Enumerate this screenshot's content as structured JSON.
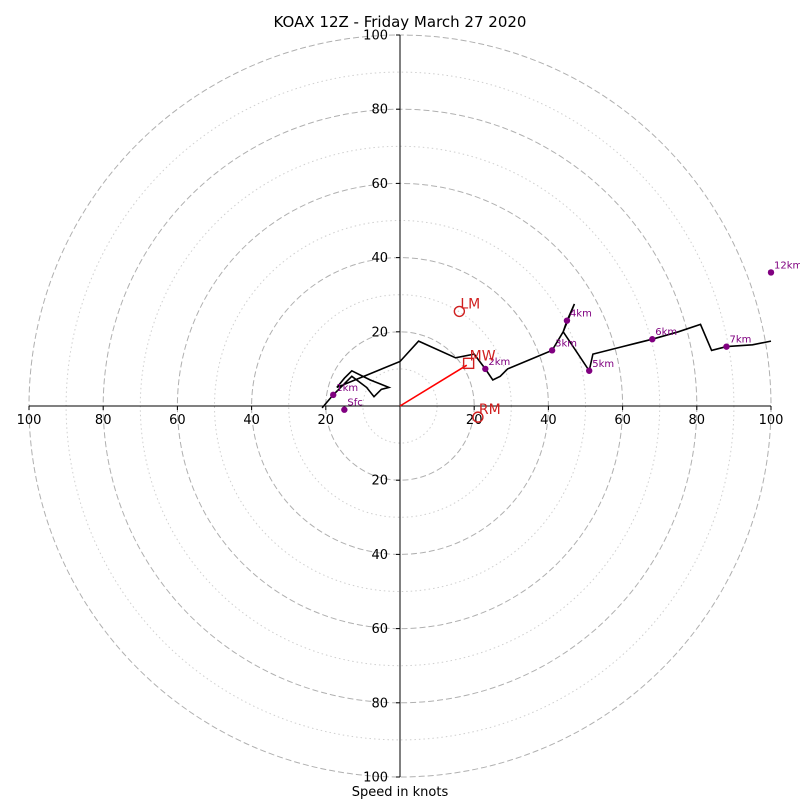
{
  "chart_data": {
    "type": "scatter",
    "title": "KOAX 12Z - Friday March 27 2020",
    "xlabel": "Speed in knots",
    "ylabel": "",
    "xlim": [
      -100,
      100
    ],
    "ylim": [
      -100,
      100
    ],
    "ring_values": [
      20,
      40,
      60,
      80,
      100
    ],
    "minor_ring_values": [
      10,
      30,
      50,
      70,
      90
    ],
    "tick_labels": [
      "100",
      "80",
      "60",
      "40",
      "20",
      "20",
      "40",
      "60",
      "80",
      "100"
    ],
    "grid": true,
    "hodograph": {
      "name": "",
      "color": "#000000",
      "points": [
        [
          -21,
          -0.5
        ],
        [
          -18,
          3
        ],
        [
          -13,
          8
        ],
        [
          -9,
          5
        ],
        [
          -7,
          2.5
        ],
        [
          -5,
          4.5
        ],
        [
          -3,
          5
        ],
        [
          -8,
          7
        ],
        [
          -13,
          9.5
        ],
        [
          -15,
          7.5
        ],
        [
          -17,
          5
        ],
        [
          0,
          12
        ],
        [
          5,
          17.5
        ],
        [
          15,
          13
        ],
        [
          20,
          14
        ],
        [
          23,
          10
        ],
        [
          25,
          7
        ],
        [
          27,
          8
        ],
        [
          29,
          10
        ],
        [
          35,
          12.5
        ],
        [
          41,
          15
        ],
        [
          44,
          20
        ],
        [
          45,
          23
        ],
        [
          47,
          27.5
        ],
        [
          44,
          20
        ],
        [
          48,
          14
        ],
        [
          51,
          9.5
        ],
        [
          52,
          14
        ],
        [
          60,
          16
        ],
        [
          68,
          18
        ],
        [
          75,
          20
        ],
        [
          81,
          22
        ],
        [
          84,
          15
        ],
        [
          88,
          16
        ],
        [
          95,
          16.5
        ],
        [
          100,
          17.5
        ]
      ]
    },
    "height_markers": [
      {
        "label": "Sfc",
        "u": -15,
        "v": -1
      },
      {
        "label": "1km",
        "u": -18,
        "v": 3
      },
      {
        "label": "2km",
        "u": 23,
        "v": 10
      },
      {
        "label": "3km",
        "u": 41,
        "v": 15
      },
      {
        "label": "4km",
        "u": 45,
        "v": 23
      },
      {
        "label": "5km",
        "u": 51,
        "v": 9.5
      },
      {
        "label": "6km",
        "u": 68,
        "v": 18
      },
      {
        "label": "7km",
        "u": 88,
        "v": 16
      },
      {
        "label": "12km",
        "u": 100,
        "v": 36
      }
    ],
    "storm_motion": [
      {
        "label": "LM",
        "u": 16,
        "v": 25.5,
        "marker": "circle"
      },
      {
        "label": "MW",
        "u": 18.5,
        "v": 11.5,
        "marker": "square"
      },
      {
        "label": "RM",
        "u": 21,
        "v": -3,
        "marker": "circle"
      }
    ],
    "shear_vector": {
      "to_u": 18,
      "to_v": 11,
      "color": "#ff0000"
    },
    "colors": {
      "grid": "#b0b0b0",
      "height_marker": "#800080",
      "storm_motion": "#d02020",
      "shear_vector": "#ff0000"
    }
  }
}
